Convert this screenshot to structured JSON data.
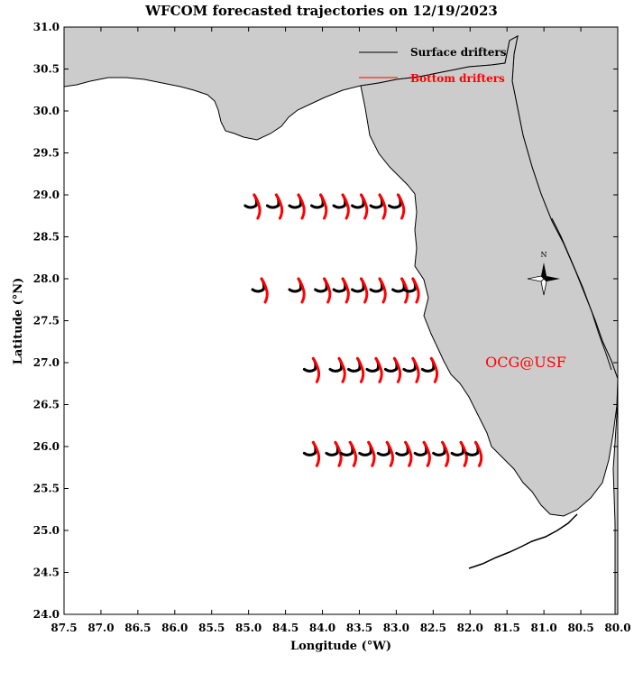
{
  "title": "WFCOM forecasted trajectories on 12/19/2023",
  "x_axis": {
    "label": "Longitude (°W)",
    "range": [
      87.5,
      80.0
    ],
    "ticks": [
      "87.5",
      "87.0",
      "86.5",
      "86.0",
      "85.5",
      "85.0",
      "84.5",
      "84.0",
      "83.5",
      "83.0",
      "82.5",
      "82.0",
      "81.5",
      "81.0",
      "80.5",
      "80.0"
    ]
  },
  "y_axis": {
    "label": "Latitude (°N)",
    "range": [
      24.0,
      31.0
    ],
    "ticks": [
      "24.0",
      "24.5",
      "25.0",
      "25.5",
      "26.0",
      "26.5",
      "27.0",
      "27.5",
      "28.0",
      "28.5",
      "29.0",
      "29.5",
      "30.0",
      "30.5",
      "31.0"
    ]
  },
  "legend": {
    "placement": "top-right",
    "items": [
      {
        "label": "Surface drifters",
        "color": "#000000"
      },
      {
        "label": "Bottom drifters",
        "color": "#ff0000"
      }
    ]
  },
  "land_color": "#cccccc",
  "watermark": {
    "text": "OCG@USF",
    "color": "#ff0000"
  },
  "compass": {
    "label": "N"
  },
  "drifters": {
    "rows": [
      {
        "lat": 29.0,
        "lons": [
          84.9,
          84.6,
          84.3,
          84.0,
          83.7,
          83.45,
          83.2,
          82.95
        ]
      },
      {
        "lat": 28.0,
        "lons": [
          84.8,
          84.3,
          83.95,
          83.7,
          83.45,
          83.2,
          82.9,
          82.75
        ]
      },
      {
        "lat": 27.05,
        "lons": [
          84.1,
          83.75,
          83.5,
          83.25,
          83.0,
          82.75,
          82.5
        ]
      },
      {
        "lat": 26.05,
        "lons": [
          84.1,
          83.8,
          83.6,
          83.35,
          83.1,
          82.85,
          82.6,
          82.35,
          82.1,
          81.9
        ]
      }
    ],
    "surface_color": "#000000",
    "bottom_color": "#ff0000"
  }
}
